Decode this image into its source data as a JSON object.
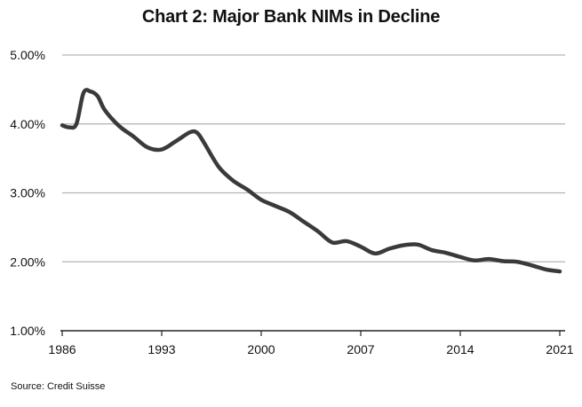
{
  "chart_data": {
    "type": "line",
    "title": "Chart 2: Major Bank NIMs in Decline",
    "xlabel": "",
    "ylabel": "",
    "xlim": [
      1986,
      2021
    ],
    "ylim": [
      1.0,
      5.0
    ],
    "x_ticks": [
      1986,
      1993,
      2000,
      2007,
      2014,
      2021
    ],
    "x_tick_labels": [
      "1986",
      "1993",
      "2000",
      "2007",
      "2014",
      "2021"
    ],
    "y_ticks": [
      1.0,
      2.0,
      3.0,
      4.0,
      5.0
    ],
    "y_tick_labels": [
      "1.00%",
      "2.00%",
      "3.00%",
      "4.00%",
      "5.00%"
    ],
    "grid": "horizontal",
    "series": [
      {
        "color": "#3a3a3a",
        "x": [
          1986,
          1986.5,
          1987,
          1987.5,
          1988,
          1988.5,
          1989,
          1990,
          1991,
          1992,
          1993,
          1994,
          1995,
          1995.5,
          1996,
          1997,
          1998,
          1999,
          2000,
          2001,
          2002,
          2003,
          2004,
          2005,
          2006,
          2007,
          2008,
          2009,
          2010,
          2011,
          2012,
          2013,
          2014,
          2015,
          2016,
          2017,
          2018,
          2019,
          2020,
          2021
        ],
        "values": [
          3.98,
          3.95,
          4.0,
          4.45,
          4.47,
          4.4,
          4.2,
          3.97,
          3.82,
          3.66,
          3.63,
          3.75,
          3.88,
          3.87,
          3.72,
          3.38,
          3.18,
          3.05,
          2.9,
          2.81,
          2.72,
          2.58,
          2.44,
          2.28,
          2.3,
          2.22,
          2.12,
          2.19,
          2.24,
          2.25,
          2.17,
          2.13,
          2.07,
          2.02,
          2.04,
          2.01,
          2.0,
          1.95,
          1.89,
          1.86
        ]
      }
    ]
  },
  "footer": {
    "source": "Source: Credit Suisse"
  }
}
